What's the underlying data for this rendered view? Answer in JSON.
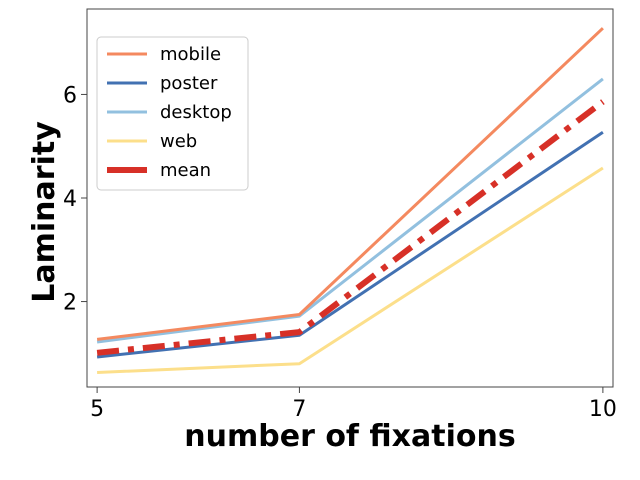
{
  "chart_data": {
    "type": "line",
    "title": "",
    "xlabel": "number of fixations",
    "ylabel": "Laminarity",
    "x": [
      5,
      7,
      10
    ],
    "xlim": [
      4.9,
      10.1
    ],
    "ylim": [
      0.35,
      7.65
    ],
    "xticks": [
      "5",
      "7",
      "10"
    ],
    "yticks": [
      "2",
      "4",
      "6"
    ],
    "grid": false,
    "legend_position": "upper-left",
    "series": [
      {
        "name": "mobile",
        "values": [
          1.27,
          1.75,
          7.28
        ],
        "color": "#f4895f",
        "style": "solid"
      },
      {
        "name": "poster",
        "values": [
          0.93,
          1.35,
          5.27
        ],
        "color": "#4271b2",
        "style": "solid"
      },
      {
        "name": "desktop",
        "values": [
          1.22,
          1.72,
          6.3
        ],
        "color": "#92c0df",
        "style": "solid"
      },
      {
        "name": "web",
        "values": [
          0.63,
          0.8,
          4.58
        ],
        "color": "#fcdf8b",
        "style": "solid"
      },
      {
        "name": "mean",
        "values": [
          1.01,
          1.41,
          5.86
        ],
        "color": "#d73027",
        "style": "dashdot"
      }
    ]
  }
}
